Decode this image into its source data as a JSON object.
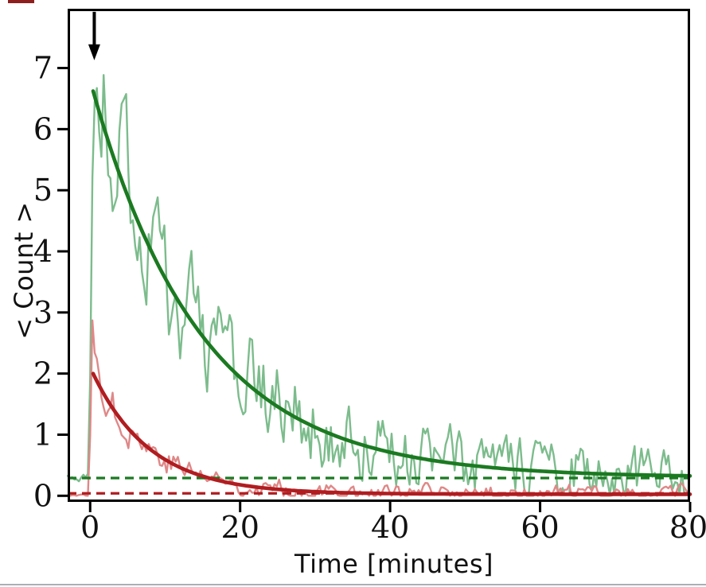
{
  "decor": {
    "top_left_mark_color": "#8e1f1f",
    "bottom_border_color": "#a9b0b6"
  },
  "chart_data": {
    "type": "line",
    "title": "",
    "xlabel": "Time [minutes]",
    "ylabel": "< Count >",
    "xlim": [
      -3,
      80
    ],
    "ylim": [
      -0.1,
      7.97
    ],
    "xticks": [
      0,
      20,
      40,
      60,
      80
    ],
    "yticks": [
      0,
      1,
      2,
      3,
      4,
      5,
      6,
      7
    ],
    "grid": false,
    "legend": null,
    "axis_color": "#000000",
    "annotations": [
      {
        "type": "arrow",
        "name": "stimulus-arrow",
        "x": 0.55,
        "y_from": 7.92,
        "y_to": 7.18,
        "color": "#000000"
      }
    ],
    "series": [
      {
        "name": "raw-trace-high",
        "kind": "noisy",
        "color": "#7cbc8c",
        "linewidth": 2.4,
        "baseline": 0.29,
        "pre_sigma": 0.07,
        "rise_start": -0.15,
        "rise_end": 0.45,
        "peak": 6.95,
        "offset": 0.3,
        "amplitude": 6.5,
        "tau": 14.5,
        "spike_amp": 0.25,
        "spike_tau": 1.3,
        "noise_scale": 1.0,
        "clamp_min": 0.02,
        "clamp_max": 7.6,
        "dt": 0.3,
        "seed": 20
      },
      {
        "name": "raw-trace-low",
        "kind": "noisy",
        "color": "#df8888",
        "linewidth": 2.4,
        "baseline": 0.01,
        "pre_sigma": 0.012,
        "rise_start": -0.15,
        "rise_end": 0.3,
        "peak": 2.85,
        "offset": 0.03,
        "amplitude": 2.05,
        "tau": 7.7,
        "spike_amp": 0.55,
        "spike_tau": 0.6,
        "noise_scale": 0.42,
        "clamp_min": 0.0,
        "clamp_max": 2.95,
        "dt": 0.3,
        "seed": 77
      },
      {
        "name": "steady-state-high",
        "kind": "hline",
        "color": "#1b7a21",
        "linewidth": 3.2,
        "dash": "11 7",
        "y": 0.29
      },
      {
        "name": "steady-state-low",
        "kind": "hline",
        "color": "#b01d20",
        "linewidth": 3.2,
        "dash": "11 7",
        "y": 0.04
      },
      {
        "name": "exp-fit-high",
        "kind": "fit",
        "color": "#1b7a21",
        "linewidth": 4.6,
        "t_start": 0.4,
        "offset": 0.3,
        "amplitude": 6.5,
        "tau": 14.5
      },
      {
        "name": "exp-fit-low",
        "kind": "fit",
        "color": "#b01d20",
        "linewidth": 4.6,
        "t_start": 0.4,
        "offset": 0.025,
        "amplitude": 2.08,
        "tau": 7.7
      }
    ]
  }
}
